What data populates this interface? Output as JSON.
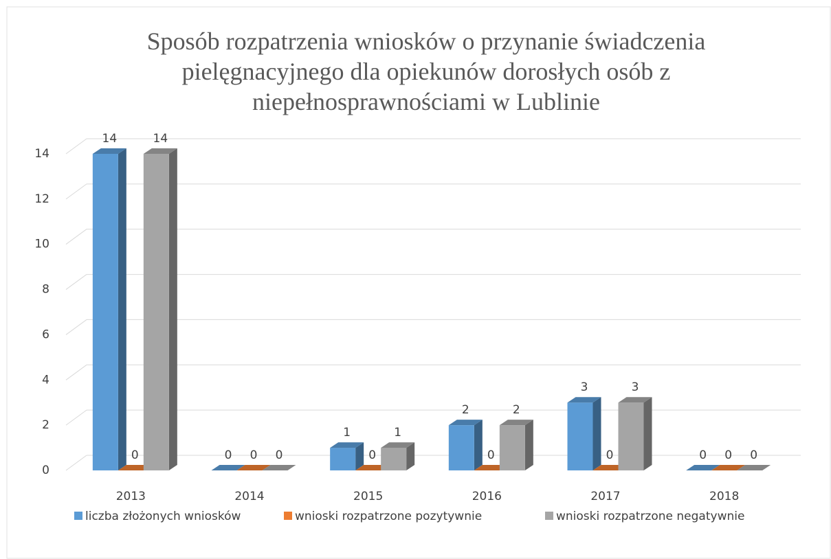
{
  "chart_data": {
    "type": "bar3d",
    "title": "Sposób rozpatrzenia wniosków o przynanie świadczenia pielęgnacyjnego dla opiekunów dorosłych osób z niepełnosprawnościami w Lublinie",
    "categories": [
      "2013",
      "2014",
      "2015",
      "2016",
      "2017",
      "2018"
    ],
    "series": [
      {
        "name": "liczba złożonych wniosków",
        "color": "#5b9bd5",
        "values": [
          14,
          0,
          1,
          2,
          3,
          0
        ]
      },
      {
        "name": "wnioski rozpatrzone pozytywnie",
        "color": "#ed7d31",
        "values": [
          0,
          0,
          0,
          0,
          0,
          0
        ]
      },
      {
        "name": "wnioski rozpatrzone negatywnie",
        "color": "#a5a5a5",
        "values": [
          14,
          0,
          1,
          2,
          3,
          0
        ]
      }
    ],
    "ylim": [
      0,
      14
    ],
    "yticks": [
      0,
      2,
      4,
      6,
      8,
      10,
      12,
      14
    ],
    "grid": true,
    "legend": "bottom"
  }
}
